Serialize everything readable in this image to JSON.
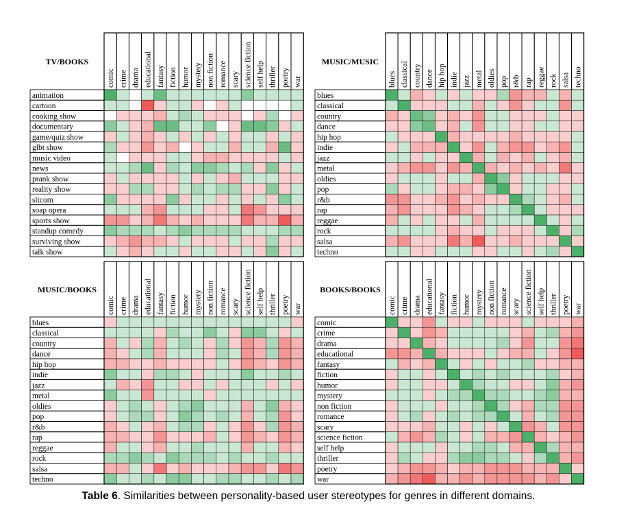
{
  "tables": [
    {
      "title": "TV/BOOKS",
      "columns": [
        "comic",
        "crime",
        "drama",
        "educational",
        "fantasy",
        "fiction",
        "humor",
        "mystery",
        "non fiction",
        "romance",
        "scary",
        "science fiction",
        "self help",
        "thriller",
        "poetry",
        "war"
      ],
      "rows": [
        "animation",
        "cartoon",
        "cooking show",
        "documentary",
        "game/quiz show",
        "glbt show",
        "music video",
        "news",
        "prank show",
        "reality show",
        "sitcom",
        "soap opera",
        "sports show",
        "standup comedy",
        "surviving show",
        "talk show"
      ],
      "values": [
        [
          5,
          1,
          0,
          1,
          4,
          1,
          1,
          1,
          1,
          1,
          1,
          3,
          1,
          1,
          1,
          1
        ],
        [
          1,
          1,
          0,
          -5,
          -1,
          1,
          1,
          -1,
          0,
          -1,
          1,
          0,
          0,
          0,
          0,
          1
        ],
        [
          0,
          -1,
          -1,
          -1,
          -2,
          1,
          2,
          1,
          -1,
          -1,
          -1,
          0,
          -1,
          2,
          0,
          -1
        ],
        [
          3,
          1,
          -1,
          -2,
          4,
          4,
          1,
          1,
          3,
          0,
          -1,
          4,
          4,
          3,
          -1,
          1
        ],
        [
          -1,
          1,
          -1,
          -2,
          -1,
          1,
          -1,
          1,
          -1,
          1,
          -1,
          1,
          1,
          -1,
          1,
          -1
        ],
        [
          2,
          -1,
          -1,
          -3,
          -1,
          -2,
          0,
          -1,
          1,
          1,
          -2,
          1,
          1,
          -2,
          4,
          -1
        ],
        [
          1,
          0,
          -1,
          -1,
          -1,
          1,
          1,
          -1,
          -2,
          -2,
          -1,
          -1,
          -1,
          -1,
          1,
          -1
        ],
        [
          1,
          1,
          2,
          4,
          -1,
          2,
          1,
          3,
          3,
          2,
          1,
          2,
          -1,
          3,
          -1,
          1
        ],
        [
          -1,
          1,
          -1,
          -1,
          -1,
          -1,
          1,
          -1,
          1,
          -1,
          -2,
          1,
          1,
          1,
          -1,
          -1
        ],
        [
          -1,
          -1,
          2,
          2,
          -1,
          -1,
          1,
          2,
          1,
          2,
          2,
          -1,
          -1,
          3,
          -1,
          1
        ],
        [
          3,
          -1,
          -1,
          -1,
          -1,
          3,
          -1,
          1,
          1,
          -1,
          1,
          -1,
          1,
          -1,
          3,
          1
        ],
        [
          1,
          1,
          1,
          -2,
          -3,
          1,
          1,
          1,
          -1,
          -1,
          1,
          -4,
          -3,
          -1,
          -1,
          -1
        ],
        [
          -3,
          -3,
          -1,
          -2,
          -4,
          -2,
          -1,
          -2,
          -1,
          -1,
          -1,
          -4,
          -2,
          -2,
          -5,
          -2
        ],
        [
          3,
          2,
          2,
          2,
          1,
          2,
          3,
          2,
          2,
          2,
          2,
          1,
          1,
          1,
          2,
          2
        ],
        [
          -1,
          -2,
          -3,
          -2,
          -2,
          -1,
          1,
          -1,
          -1,
          -1,
          1,
          -1,
          -1,
          2,
          -1,
          -1
        ],
        [
          1,
          -1,
          -2,
          -1,
          1,
          1,
          -1,
          1,
          1,
          -1,
          -1,
          1,
          -1,
          3,
          -1,
          1
        ]
      ]
    },
    {
      "title": "MUSIC/MUSIC",
      "columns": [
        "blues",
        "classical",
        "country",
        "dance",
        "hip hop",
        "indie",
        "jazz",
        "metal",
        "oldies",
        "pop",
        "r&b",
        "rap",
        "reggae",
        "rock",
        "salsa",
        "techno"
      ],
      "rows": [
        "blues",
        "classical",
        "country",
        "dance",
        "hip hop",
        "indie",
        "jazz",
        "metal",
        "oldies",
        "pop",
        "r&b",
        "rap",
        "reggae",
        "rock",
        "salsa",
        "techno"
      ],
      "values": [
        [
          5,
          1,
          -2,
          -1,
          1,
          -1,
          1,
          -1,
          -1,
          2,
          -3,
          -2,
          -2,
          1,
          -2,
          1
        ],
        [
          1,
          5,
          -1,
          -1,
          -1,
          1,
          1,
          -2,
          1,
          -1,
          -3,
          -1,
          1,
          1,
          -3,
          1
        ],
        [
          -2,
          -1,
          4,
          3,
          -1,
          -2,
          -1,
          -3,
          1,
          1,
          -1,
          -1,
          -1,
          1,
          -1,
          -1
        ],
        [
          -1,
          -1,
          3,
          4,
          -1,
          -2,
          1,
          -3,
          1,
          1,
          -1,
          -1,
          1,
          1,
          -1,
          -1
        ],
        [
          1,
          -1,
          -1,
          -1,
          5,
          -2,
          -1,
          -1,
          -1,
          -1,
          -2,
          -1,
          -1,
          -1,
          -1,
          1
        ],
        [
          -1,
          1,
          -2,
          -2,
          -2,
          5,
          -1,
          -3,
          1,
          -2,
          -3,
          -3,
          -1,
          -2,
          -3,
          1
        ],
        [
          1,
          1,
          -1,
          1,
          -1,
          -1,
          5,
          -2,
          1,
          -2,
          -1,
          -2,
          1,
          -1,
          -2,
          1
        ],
        [
          -1,
          -2,
          -3,
          -3,
          -1,
          -3,
          -2,
          5,
          -2,
          -1,
          -2,
          -1,
          -2,
          -1,
          -4,
          -1
        ],
        [
          -1,
          1,
          1,
          1,
          -1,
          1,
          1,
          -2,
          5,
          3,
          -1,
          1,
          1,
          1,
          -1,
          -1
        ],
        [
          2,
          -1,
          1,
          1,
          -1,
          -2,
          -2,
          -1,
          3,
          5,
          -1,
          1,
          1,
          -1,
          -1,
          1
        ],
        [
          -3,
          -3,
          -1,
          -1,
          -2,
          -3,
          -1,
          -2,
          -1,
          -1,
          5,
          2,
          1,
          -1,
          -2,
          1
        ],
        [
          -2,
          -3,
          -1,
          -1,
          -1,
          -3,
          -2,
          -1,
          1,
          1,
          2,
          5,
          1,
          -1,
          -1,
          -1
        ],
        [
          -2,
          1,
          -1,
          1,
          -1,
          -1,
          1,
          -2,
          1,
          1,
          1,
          1,
          5,
          1,
          -1,
          1
        ],
        [
          1,
          1,
          1,
          1,
          -1,
          -2,
          -1,
          -1,
          1,
          -1,
          -1,
          -1,
          1,
          5,
          -1,
          2
        ],
        [
          -2,
          -3,
          -1,
          -1,
          -1,
          -4,
          -2,
          -5,
          -1,
          -1,
          -2,
          -1,
          -1,
          -1,
          5,
          -1
        ],
        [
          1,
          1,
          -1,
          -1,
          1,
          1,
          1,
          -1,
          -1,
          1,
          1,
          -1,
          1,
          2,
          -1,
          5
        ]
      ]
    },
    {
      "title": "MUSIC/BOOKS",
      "columns": [
        "comic",
        "crime",
        "drama",
        "educational",
        "fantasy",
        "fiction",
        "humor",
        "mystery",
        "non fiction",
        "romance",
        "scary",
        "science fiction",
        "self help",
        "thriller",
        "poetry",
        "war"
      ],
      "rows": [
        "blues",
        "classical",
        "country",
        "dance",
        "hip hop",
        "indie",
        "jazz",
        "metal",
        "oldies",
        "pop",
        "r&b",
        "rap",
        "reggae",
        "rock",
        "salsa",
        "techno"
      ],
      "values": [
        [
          -1,
          1,
          1,
          1,
          1,
          1,
          1,
          1,
          1,
          1,
          1,
          1,
          1,
          1,
          1,
          -1
        ],
        [
          1,
          1,
          1,
          1,
          -1,
          2,
          1,
          1,
          3,
          1,
          -1,
          3,
          3,
          1,
          -1,
          1
        ],
        [
          -2,
          1,
          -1,
          2,
          -2,
          1,
          2,
          1,
          -1,
          2,
          -1,
          -3,
          -2,
          2,
          -3,
          -2
        ],
        [
          -2,
          -1,
          1,
          2,
          -2,
          1,
          1,
          1,
          -1,
          2,
          1,
          -3,
          -2,
          2,
          -3,
          -2
        ],
        [
          -2,
          -2,
          -1,
          -1,
          -2,
          -1,
          -1,
          -1,
          -1,
          1,
          -1,
          -3,
          -2,
          -1,
          -3,
          -2
        ],
        [
          3,
          1,
          1,
          -1,
          2,
          2,
          1,
          -1,
          1,
          1,
          1,
          3,
          1,
          1,
          2,
          1
        ],
        [
          1,
          -2,
          -1,
          -3,
          1,
          1,
          -1,
          -1,
          1,
          -1,
          1,
          1,
          1,
          -1,
          1,
          -1
        ],
        [
          3,
          1,
          1,
          -3,
          1,
          1,
          1,
          1,
          -1,
          1,
          1,
          1,
          1,
          1,
          1,
          1
        ],
        [
          -1,
          1,
          2,
          1,
          -1,
          1,
          2,
          3,
          1,
          1,
          1,
          -2,
          1,
          3,
          -2,
          -1
        ],
        [
          -1,
          1,
          2,
          2,
          -1,
          1,
          3,
          2,
          1,
          2,
          1,
          -2,
          1,
          2,
          -3,
          -1
        ],
        [
          -2,
          -1,
          1,
          -1,
          -2,
          1,
          2,
          2,
          -1,
          1,
          -1,
          -3,
          -1,
          2,
          -3,
          -2
        ],
        [
          -2,
          -2,
          -1,
          -1,
          -3,
          -1,
          -1,
          -1,
          -2,
          1,
          -1,
          -3,
          -2,
          -1,
          -3,
          -2
        ],
        [
          -2,
          1,
          1,
          -1,
          -2,
          1,
          1,
          2,
          1,
          1,
          1,
          -2,
          1,
          1,
          -2,
          -1
        ],
        [
          2,
          2,
          3,
          2,
          1,
          3,
          2,
          2,
          2,
          1,
          2,
          1,
          1,
          2,
          1,
          1
        ],
        [
          -2,
          -2,
          1,
          -1,
          -4,
          -1,
          -2,
          -1,
          -1,
          -1,
          -2,
          -3,
          -3,
          -1,
          -4,
          -3
        ],
        [
          3,
          1,
          1,
          2,
          1,
          3,
          3,
          1,
          1,
          2,
          2,
          1,
          1,
          2,
          1,
          2
        ]
      ]
    },
    {
      "title": "BOOKS/BOOKS",
      "columns": [
        "comic",
        "crime",
        "drama",
        "educational",
        "fantasy",
        "fiction",
        "humor",
        "mystery",
        "non fiction",
        "romance",
        "scary",
        "science fiction",
        "self help",
        "thriller",
        "poetry",
        "war"
      ],
      "rows": [
        "comic",
        "crime",
        "drama",
        "educational",
        "fantasy",
        "fiction",
        "humor",
        "mystery",
        "non fiction",
        "romance",
        "scary",
        "science fiction",
        "self help",
        "thriller",
        "poetry",
        "war"
      ],
      "values": [
        [
          5,
          -1,
          -1,
          -3,
          1,
          -1,
          -1,
          1,
          -1,
          -1,
          -1,
          1,
          -1,
          -1,
          -1,
          -2
        ],
        [
          -1,
          5,
          -1,
          -3,
          -2,
          1,
          1,
          1,
          1,
          1,
          -1,
          -2,
          1,
          2,
          -2,
          -3
        ],
        [
          -1,
          -1,
          5,
          -2,
          -1,
          1,
          1,
          1,
          1,
          2,
          -1,
          -3,
          1,
          1,
          -3,
          -4
        ],
        [
          -3,
          -3,
          -2,
          5,
          -2,
          -1,
          -1,
          -1,
          1,
          -1,
          -2,
          -2,
          1,
          -1,
          -3,
          -5
        ],
        [
          1,
          -2,
          -1,
          -2,
          5,
          1,
          -1,
          1,
          -1,
          1,
          1,
          2,
          -1,
          -1,
          -2,
          -2
        ],
        [
          -1,
          1,
          1,
          -1,
          1,
          5,
          1,
          2,
          1,
          2,
          1,
          1,
          1,
          2,
          -1,
          -2
        ],
        [
          -1,
          1,
          1,
          -1,
          -1,
          1,
          5,
          2,
          1,
          1,
          -1,
          -1,
          1,
          3,
          -2,
          -3
        ],
        [
          1,
          1,
          1,
          -1,
          1,
          2,
          2,
          5,
          2,
          2,
          1,
          1,
          2,
          3,
          -2,
          -2
        ],
        [
          -1,
          1,
          1,
          1,
          -1,
          1,
          1,
          2,
          5,
          2,
          -1,
          -2,
          2,
          2,
          -3,
          -3
        ],
        [
          -1,
          1,
          2,
          -1,
          1,
          2,
          1,
          2,
          2,
          5,
          1,
          -2,
          1,
          2,
          -3,
          -3
        ],
        [
          -1,
          -1,
          -1,
          -2,
          1,
          1,
          -1,
          1,
          -1,
          1,
          5,
          -3,
          -2,
          1,
          -3,
          -3
        ],
        [
          1,
          -2,
          -3,
          -2,
          2,
          1,
          -1,
          1,
          -2,
          -2,
          -3,
          5,
          -2,
          -1,
          -2,
          -3
        ],
        [
          -1,
          1,
          1,
          1,
          -1,
          1,
          1,
          2,
          2,
          1,
          -2,
          -2,
          5,
          2,
          -2,
          -2
        ],
        [
          -1,
          2,
          1,
          -1,
          -1,
          2,
          3,
          3,
          2,
          2,
          1,
          -1,
          2,
          5,
          -2,
          -3
        ],
        [
          -1,
          -2,
          -3,
          -3,
          -2,
          -1,
          -2,
          -2,
          -3,
          -3,
          -3,
          -2,
          -2,
          -2,
          5,
          -1
        ],
        [
          -2,
          -3,
          -4,
          -5,
          -2,
          -2,
          -3,
          -2,
          -3,
          -3,
          -3,
          -3,
          -2,
          -3,
          -1,
          5
        ]
      ]
    }
  ],
  "caption_bold": "Table 6",
  "caption_rest": ". Similarities between personality-based user stereotypes for genres in different domains.",
  "colors": {
    "positive": "#4caf6a",
    "negative": "#ee5b5b",
    "neutral": "#ffffff"
  }
}
